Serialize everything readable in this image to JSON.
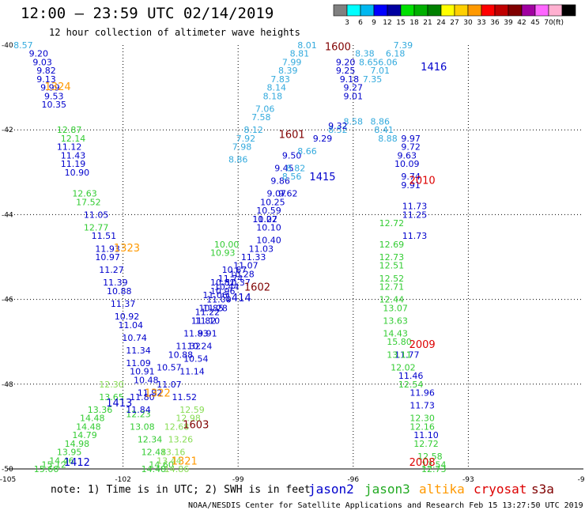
{
  "title": "12:00 — 23:59 UTC 02/14/2019",
  "subtitle": "12 hour collection of altimeter wave heights",
  "note": "note: 1) Time is in UTC; 2) SWH is in feet",
  "credit": "NOAA/NESDIS Center for Satellite Applications and Research   Feb 15 13:27:50 UTC 2019",
  "legend_unit": "(ft)",
  "colorbar": [
    {
      "color": "#808080",
      "label": ""
    },
    {
      "color": "#00ffff",
      "label": "3"
    },
    {
      "color": "#00b8f0",
      "label": "6"
    },
    {
      "color": "#0000ff",
      "label": "9"
    },
    {
      "color": "#0000a0",
      "label": "12"
    },
    {
      "color": "#00e000",
      "label": "15"
    },
    {
      "color": "#00b000",
      "label": "18"
    },
    {
      "color": "#008000",
      "label": "21"
    },
    {
      "color": "#ffff00",
      "label": "24"
    },
    {
      "color": "#ffd000",
      "label": "27"
    },
    {
      "color": "#ff9900",
      "label": "30"
    },
    {
      "color": "#ff0000",
      "label": "33"
    },
    {
      "color": "#c00000",
      "label": "36"
    },
    {
      "color": "#800000",
      "label": "39"
    },
    {
      "color": "#a000a0",
      "label": "42"
    },
    {
      "color": "#ff66ff",
      "label": "45"
    },
    {
      "color": "#ffb0d0",
      "label": "70"
    },
    {
      "color": "#000000",
      "label": ""
    }
  ],
  "satellites": [
    {
      "name": "jason2",
      "color": "#0000cc"
    },
    {
      "name": "jason3",
      "color": "#22aa22"
    },
    {
      "name": "altika",
      "color": "#ff9900"
    },
    {
      "name": "cryosat",
      "color": "#dd0000"
    },
    {
      "name": "s3a",
      "color": "#800000"
    }
  ],
  "chart_data": {
    "type": "scatter",
    "xlabel": "",
    "ylabel": "",
    "xlim": [
      -105,
      -90
    ],
    "ylim": [
      -50,
      -40
    ],
    "x_ticks": [
      -105,
      -102,
      -99,
      -96,
      -93,
      -90
    ],
    "y_ticks": [
      -40,
      -42,
      -44,
      -46,
      -48,
      -50
    ],
    "grid": true,
    "time_labels": [
      {
        "label": "1324",
        "lon": -103.7,
        "lat": -40.97,
        "color": "#ff9900"
      },
      {
        "label": "1323",
        "lon": -101.9,
        "lat": -44.78,
        "color": "#ff9900"
      },
      {
        "label": "1322",
        "lon": -101.1,
        "lat": -48.2,
        "color": "#ff9900"
      },
      {
        "label": "1321",
        "lon": -100.4,
        "lat": -49.8,
        "color": "#ff9900"
      },
      {
        "label": "1600",
        "lon": -96.4,
        "lat": -40.03,
        "color": "#800000"
      },
      {
        "label": "1601",
        "lon": -97.6,
        "lat": -42.1,
        "color": "#800000"
      },
      {
        "label": "1602",
        "lon": -98.5,
        "lat": -45.7,
        "color": "#800000"
      },
      {
        "label": "1603",
        "lon": -100.1,
        "lat": -48.95,
        "color": "#800000"
      },
      {
        "label": "1416",
        "lon": -93.9,
        "lat": -40.5,
        "color": "#0000cc"
      },
      {
        "label": "1415",
        "lon": -96.8,
        "lat": -43.1,
        "color": "#0000cc"
      },
      {
        "label": "1414",
        "lon": -99.0,
        "lat": -45.95,
        "color": "#0000cc"
      },
      {
        "label": "1413",
        "lon": -102.1,
        "lat": -48.43,
        "color": "#0000cc"
      },
      {
        "label": "1412",
        "lon": -103.2,
        "lat": -49.83,
        "color": "#0000cc"
      },
      {
        "label": "2010",
        "lon": -94.2,
        "lat": -43.18,
        "color": "#dd0000"
      },
      {
        "label": "2009",
        "lon": -94.2,
        "lat": -47.05,
        "color": "#dd0000"
      },
      {
        "label": "2008",
        "lon": -94.2,
        "lat": -49.83,
        "color": "#dd0000"
      }
    ],
    "series": [
      {
        "name": "jason2",
        "color": "#0000cc",
        "points": [
          [
            -104.2,
            -40.2,
            "9.20"
          ],
          [
            -104.1,
            -40.4,
            "9.03"
          ],
          [
            -104.0,
            -40.6,
            "9.82"
          ],
          [
            -104.0,
            -40.8,
            "9.13"
          ],
          [
            -103.9,
            -41.0,
            "9.99"
          ],
          [
            -103.8,
            -41.2,
            "9.53"
          ],
          [
            -103.8,
            -41.4,
            "10.35"
          ],
          [
            -103.4,
            -42.4,
            "11.12"
          ],
          [
            -103.3,
            -42.6,
            "11.43"
          ],
          [
            -103.3,
            -42.8,
            "11.19"
          ],
          [
            -103.2,
            -43.0,
            "10.90"
          ],
          [
            -102.7,
            -44.0,
            "11.05"
          ],
          [
            -102.5,
            -44.5,
            "11.51"
          ],
          [
            -102.4,
            -44.8,
            "11.93"
          ],
          [
            -102.4,
            -45.0,
            "10.97"
          ],
          [
            -102.3,
            -45.3,
            "11.27"
          ],
          [
            -102.2,
            -45.6,
            "11.39"
          ],
          [
            -102.1,
            -45.8,
            "10.88"
          ],
          [
            -102.0,
            -46.1,
            "11.37"
          ],
          [
            -101.9,
            -46.4,
            "10.92"
          ],
          [
            -101.8,
            -46.6,
            "11.04"
          ],
          [
            -101.7,
            -46.9,
            "10.74"
          ],
          [
            -101.6,
            -47.2,
            "11.34"
          ],
          [
            -101.6,
            -47.5,
            "11.09"
          ],
          [
            -101.5,
            -47.7,
            "10.91"
          ],
          [
            -101.4,
            -47.9,
            "10.48"
          ],
          [
            -101.3,
            -48.2,
            "11.92"
          ],
          [
            -96.2,
            -40.4,
            "9.20"
          ],
          [
            -96.2,
            -40.6,
            "9.25"
          ],
          [
            -96.1,
            -40.8,
            "9.18"
          ],
          [
            -96.0,
            -41.0,
            "9.27"
          ],
          [
            -96.0,
            -41.2,
            "9.01"
          ],
          [
            -94.5,
            -42.2,
            "9.97"
          ],
          [
            -94.5,
            -42.4,
            "9.72"
          ],
          [
            -94.6,
            -42.6,
            "9.63"
          ],
          [
            -94.6,
            -42.8,
            "10.09"
          ],
          [
            -94.5,
            -43.1,
            "9.74"
          ],
          [
            -94.5,
            -43.3,
            "9.91"
          ],
          [
            -94.4,
            -43.8,
            "11.73"
          ],
          [
            -94.4,
            -44.0,
            "11.25"
          ],
          [
            -94.4,
            -44.5,
            "11.73"
          ],
          [
            -94.2,
            -48.2,
            "11.96"
          ],
          [
            -94.2,
            -48.5,
            "11.73"
          ],
          [
            -94.1,
            -49.2,
            "11.10"
          ],
          [
            -94.5,
            -47.8,
            "11.46"
          ],
          [
            -94.6,
            -47.3,
            "11.77"
          ],
          [
            -97.6,
            -42.6,
            "9.50"
          ],
          [
            -97.8,
            -42.9,
            "9.45"
          ],
          [
            -97.9,
            -43.2,
            "9.86"
          ],
          [
            -98.0,
            -43.5,
            "9.07"
          ],
          [
            -98.1,
            -43.7,
            "10.25"
          ],
          [
            -98.2,
            -43.9,
            "10.59"
          ],
          [
            -98.3,
            -44.1,
            "11.07"
          ],
          [
            -99.1,
            -45.3,
            "10.67"
          ],
          [
            -99.2,
            -45.5,
            "11.74"
          ],
          [
            -99.4,
            -45.8,
            "10.96"
          ],
          [
            -99.5,
            -46.0,
            "11.00"
          ],
          [
            -99.6,
            -46.2,
            "11.28"
          ],
          [
            -99.8,
            -46.3,
            "11.22"
          ],
          [
            -99.9,
            -46.5,
            "11.82"
          ],
          [
            -100.1,
            -46.8,
            "11.83"
          ],
          [
            -100.3,
            -47.1,
            "11.32"
          ],
          [
            -100.5,
            -47.3,
            "10.88"
          ],
          [
            -100.8,
            -47.6,
            "10.57"
          ]
        ]
      },
      {
        "name": "jason2_light",
        "color": "#33aadd",
        "points": [
          [
            -104.6,
            -40.0,
            "8.57"
          ],
          [
            -97.2,
            -40.0,
            "8.01"
          ],
          [
            -97.4,
            -40.2,
            "8.81"
          ],
          [
            -97.6,
            -40.4,
            "7.99"
          ],
          [
            -97.7,
            -40.6,
            "8.39"
          ],
          [
            -97.9,
            -40.8,
            "7.83"
          ],
          [
            -98.0,
            -41.0,
            "8.14"
          ],
          [
            -98.1,
            -41.2,
            "8.18"
          ],
          [
            -98.3,
            -41.5,
            "7.06"
          ],
          [
            -98.4,
            -41.7,
            "7.58"
          ],
          [
            -98.6,
            -42.0,
            "8.12"
          ],
          [
            -98.8,
            -42.2,
            "7.92"
          ],
          [
            -98.9,
            -42.4,
            "7.98"
          ],
          [
            -99.0,
            -42.7,
            "8.86"
          ],
          [
            -95.7,
            -40.2,
            "8.38"
          ],
          [
            -95.6,
            -40.4,
            "8.65"
          ],
          [
            -94.7,
            -40.0,
            "7.39"
          ],
          [
            -94.9,
            -40.2,
            "6.18"
          ],
          [
            -95.1,
            -40.4,
            "6.06"
          ],
          [
            -95.3,
            -40.6,
            "7.01"
          ],
          [
            -95.5,
            -40.8,
            "7.35"
          ],
          [
            -96.4,
            -42.0,
            "8.52"
          ],
          [
            -96.0,
            -41.8,
            "8.58"
          ],
          [
            -95.3,
            -41.8,
            "8.86"
          ],
          [
            -95.2,
            -42.0,
            "8.41"
          ],
          [
            -95.1,
            -42.2,
            "8.88"
          ],
          [
            -97.2,
            -42.5,
            "8.66"
          ],
          [
            -97.5,
            -42.9,
            "8.82"
          ],
          [
            -97.6,
            -43.1,
            "8.56"
          ]
        ]
      },
      {
        "name": "jason3",
        "color": "#33cc33",
        "points": [
          [
            -103.4,
            -42.0,
            "12.87"
          ],
          [
            -103.3,
            -42.2,
            "12.14"
          ],
          [
            -103.0,
            -43.5,
            "12.63"
          ],
          [
            -102.9,
            -43.7,
            "17.52"
          ],
          [
            -102.7,
            -44.3,
            "12.77"
          ],
          [
            -99.3,
            -44.7,
            "10.00"
          ],
          [
            -99.4,
            -44.9,
            "10.93"
          ],
          [
            -95.0,
            -44.2,
            "12.72"
          ],
          [
            -95.0,
            -44.7,
            "12.69"
          ],
          [
            -95.0,
            -45.0,
            "12.73"
          ],
          [
            -95.0,
            -45.2,
            "12.51"
          ],
          [
            -95.0,
            -45.5,
            "12.52"
          ],
          [
            -95.0,
            -45.7,
            "12.71"
          ],
          [
            -95.0,
            -46.0,
            "12.44"
          ],
          [
            -94.9,
            -46.2,
            "13.07"
          ],
          [
            -94.9,
            -46.5,
            "13.63"
          ],
          [
            -94.9,
            -46.8,
            "14.43"
          ],
          [
            -94.8,
            -47.0,
            "15.80"
          ],
          [
            -94.8,
            -47.3,
            "13.11"
          ],
          [
            -94.7,
            -47.6,
            "12.02"
          ],
          [
            -94.5,
            -48.0,
            "12.54"
          ],
          [
            -94.2,
            -48.8,
            "12.30"
          ],
          [
            -94.2,
            -49.0,
            "12.16"
          ],
          [
            -94.1,
            -49.4,
            "12.72"
          ],
          [
            -94.0,
            -49.7,
            "12.58"
          ],
          [
            -93.9,
            -49.9,
            "13.54"
          ],
          [
            -93.9,
            -50.0,
            "12.73"
          ],
          [
            -102.3,
            -48.3,
            "13.65"
          ],
          [
            -102.6,
            -48.6,
            "13.36"
          ],
          [
            -102.8,
            -48.8,
            "14.48"
          ],
          [
            -102.9,
            -49.0,
            "14.48"
          ],
          [
            -103.0,
            -49.2,
            "14.79"
          ],
          [
            -103.2,
            -49.4,
            "14.98"
          ],
          [
            -103.4,
            -49.6,
            "13.95"
          ],
          [
            -103.6,
            -49.8,
            "14.46"
          ],
          [
            -103.8,
            -49.9,
            "15.12"
          ],
          [
            -104.0,
            -50.0,
            "15.66"
          ],
          [
            -101.6,
            -48.7,
            "12.23"
          ],
          [
            -101.5,
            -49.0,
            "13.08"
          ],
          [
            -101.3,
            -49.3,
            "12.34"
          ],
          [
            -101.2,
            -49.6,
            "12.48"
          ],
          [
            -101.0,
            -49.9,
            "14.60"
          ],
          [
            -101.2,
            -50.0,
            "14.48"
          ]
        ]
      },
      {
        "name": "jason3_light",
        "color": "#88dd55",
        "points": [
          [
            -102.3,
            -48.0,
            "12.30"
          ],
          [
            -100.2,
            -48.6,
            "12.59"
          ],
          [
            -100.3,
            -48.8,
            "12.98"
          ],
          [
            -100.6,
            -49.0,
            "12.68"
          ],
          [
            -100.5,
            -49.3,
            "13.26"
          ],
          [
            -100.7,
            -49.6,
            "13.16"
          ],
          [
            -100.8,
            -49.8,
            "13.44"
          ],
          [
            -100.6,
            -50.0,
            "14.86"
          ]
        ]
      },
      {
        "name": "jason2_b",
        "color": "#0000cc",
        "points": [
          [
            -100.4,
            -48.3,
            "11.52"
          ],
          [
            -100.8,
            -48.0,
            "11.07"
          ],
          [
            -100.2,
            -47.7,
            "11.14"
          ],
          [
            -100.1,
            -47.4,
            "10.54"
          ],
          [
            -100.0,
            -47.1,
            "10.24"
          ],
          [
            -99.8,
            -46.8,
            "9.91"
          ],
          [
            -99.8,
            -46.5,
            "11.10"
          ],
          [
            -99.7,
            -46.2,
            "10.85"
          ],
          [
            -99.6,
            -45.9,
            "11.06"
          ],
          [
            -99.4,
            -45.6,
            "10.81"
          ],
          [
            -101.5,
            -48.3,
            "11.80"
          ],
          [
            -101.6,
            -48.6,
            "11.84"
          ],
          [
            -98.2,
            -44.3,
            "10.10"
          ],
          [
            -98.3,
            -44.1,
            "10.22"
          ],
          [
            -97.7,
            -43.5,
            "9.62"
          ],
          [
            -96.8,
            -42.2,
            "9.29"
          ],
          [
            -96.4,
            -41.9,
            "9.32"
          ],
          [
            -98.2,
            -44.6,
            "10.40"
          ],
          [
            -98.4,
            -44.8,
            "11.03"
          ],
          [
            -98.6,
            -45.0,
            "11.33"
          ],
          [
            -98.8,
            -45.2,
            "11.07"
          ],
          [
            -98.9,
            -45.4,
            "10.28"
          ],
          [
            -99.0,
            -45.6,
            "10.37"
          ],
          [
            -99.3,
            -45.7,
            "10.44"
          ]
        ]
      }
    ]
  }
}
